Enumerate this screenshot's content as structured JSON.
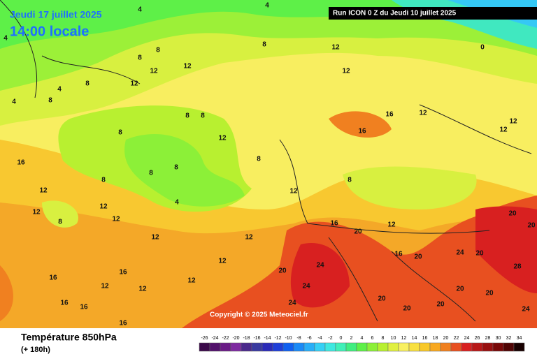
{
  "header": {
    "date": "Jeudi 17 juillet 2025",
    "time": "14:00 locale",
    "run": "Run ICON 0 Z du Jeudi 10 juillet 2025"
  },
  "copyright": "Copyright © 2025 Meteociel.fr",
  "footer": {
    "title": "Température 850hPa",
    "lead": "(+ 180h)"
  },
  "legend": {
    "labels": [
      -26,
      -24,
      -22,
      -20,
      -18,
      -16,
      -14,
      -12,
      -10,
      -8,
      -6,
      -4,
      -2,
      0,
      2,
      4,
      6,
      8,
      10,
      12,
      14,
      16,
      18,
      20,
      22,
      24,
      26,
      28,
      30,
      32,
      34
    ],
    "colors": [
      "#3b0a4a",
      "#52116b",
      "#6a1b86",
      "#7e2aa0",
      "#4b2a8c",
      "#3a3aa0",
      "#2b2bb8",
      "#1f3fd8",
      "#1060f0",
      "#1a8af7",
      "#28aef8",
      "#35d0f5",
      "#3ee8e0",
      "#40f0b8",
      "#40ee80",
      "#5ef048",
      "#8cf038",
      "#b8f030",
      "#e0f040",
      "#f8f060",
      "#f8e040",
      "#f8c828",
      "#f8a820",
      "#f08020",
      "#e85020",
      "#d82020",
      "#b81818",
      "#981010",
      "#780808",
      "#500404",
      "#180000"
    ]
  },
  "contour_labels": [
    4,
    4,
    4,
    0,
    8,
    12,
    12,
    12,
    12,
    8,
    8,
    8,
    4,
    12,
    4,
    8,
    8,
    8,
    8,
    12,
    16,
    16,
    12,
    12,
    12,
    16,
    8,
    8,
    8,
    8,
    12,
    12,
    12,
    8,
    4,
    12,
    12,
    8,
    16,
    20,
    12,
    12,
    12,
    12,
    24,
    20,
    24,
    16,
    20,
    24,
    20,
    28,
    20,
    20,
    16,
    16,
    12,
    12,
    12,
    16,
    16,
    24,
    20,
    20,
    20,
    20,
    20,
    24,
    16
  ]
}
